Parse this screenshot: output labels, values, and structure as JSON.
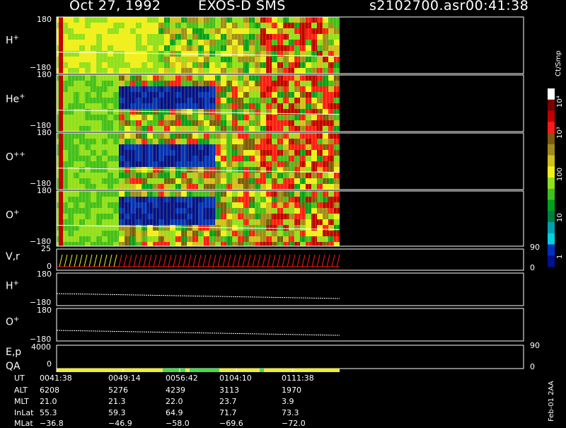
{
  "header": {
    "date": "Oct 27, 1992",
    "instrument": "EXOS-D SMS",
    "file": "s2102700.asr",
    "time": "00:41:38"
  },
  "colorbar": {
    "unit": "Ct/Smp",
    "labels": [
      "10⁴",
      "10³",
      "100",
      "10",
      "1"
    ],
    "colors": [
      "#ffffff",
      "#7a0000",
      "#c00000",
      "#ff1a1a",
      "#7a5a10",
      "#a08a20",
      "#d0c020",
      "#f0f020",
      "#90e020",
      "#40c020",
      "#00a020",
      "#008040",
      "#00a0b0",
      "#00d0e0",
      "#0030c0",
      "#001090"
    ]
  },
  "chart_data": {
    "type": "heatmap",
    "x_time_ticks": [
      "0041:38",
      "0049:14",
      "0056:42",
      "0104:10",
      "0111:38"
    ],
    "panels": [
      {
        "label": "H",
        "sup": "+",
        "ytop": "180",
        "ybot": "−180"
      },
      {
        "label": "He",
        "sup": "+",
        "ytop": "180",
        "ybot": "−180"
      },
      {
        "label": "O",
        "sup": "++",
        "ytop": "180",
        "ybot": "−180"
      },
      {
        "label": "O",
        "sup": "+",
        "ytop": "180",
        "ybot": "−180"
      }
    ],
    "vr_panel": {
      "label": "V,r",
      "left_top": "25",
      "left_bot": "0",
      "right_top": "90",
      "right_bot": "0"
    },
    "line_panels": [
      {
        "label": "H",
        "sup": "+",
        "ytop": "180",
        "ybot": "−180"
      },
      {
        "label": "O",
        "sup": "+",
        "ytop": "180",
        "ybot": "−180"
      }
    ],
    "ep_panel": {
      "label1": "E,p",
      "label2": "QA",
      "left_top": "4000",
      "left_bot": "0",
      "right_top": "90",
      "right_bot": "0"
    },
    "orbit_table": {
      "row_labels": [
        "UT",
        "ALT",
        "MLT",
        "InLat",
        "MLat"
      ],
      "columns": [
        [
          "0041:38",
          "6208",
          "21.0",
          "55.3",
          "−36.8"
        ],
        [
          "0049:14",
          "5276",
          "21.3",
          "59.3",
          "−46.9"
        ],
        [
          "0056:42",
          "4239",
          "22.0",
          "64.9",
          "−58.0"
        ],
        [
          "0104:10",
          "3113",
          "23.7",
          "71.7",
          "−69.6"
        ],
        [
          "0111:38",
          "1970",
          "3.9",
          "73.3",
          "−72.0"
        ]
      ]
    }
  },
  "footer_note": "Feb-01 2AA"
}
